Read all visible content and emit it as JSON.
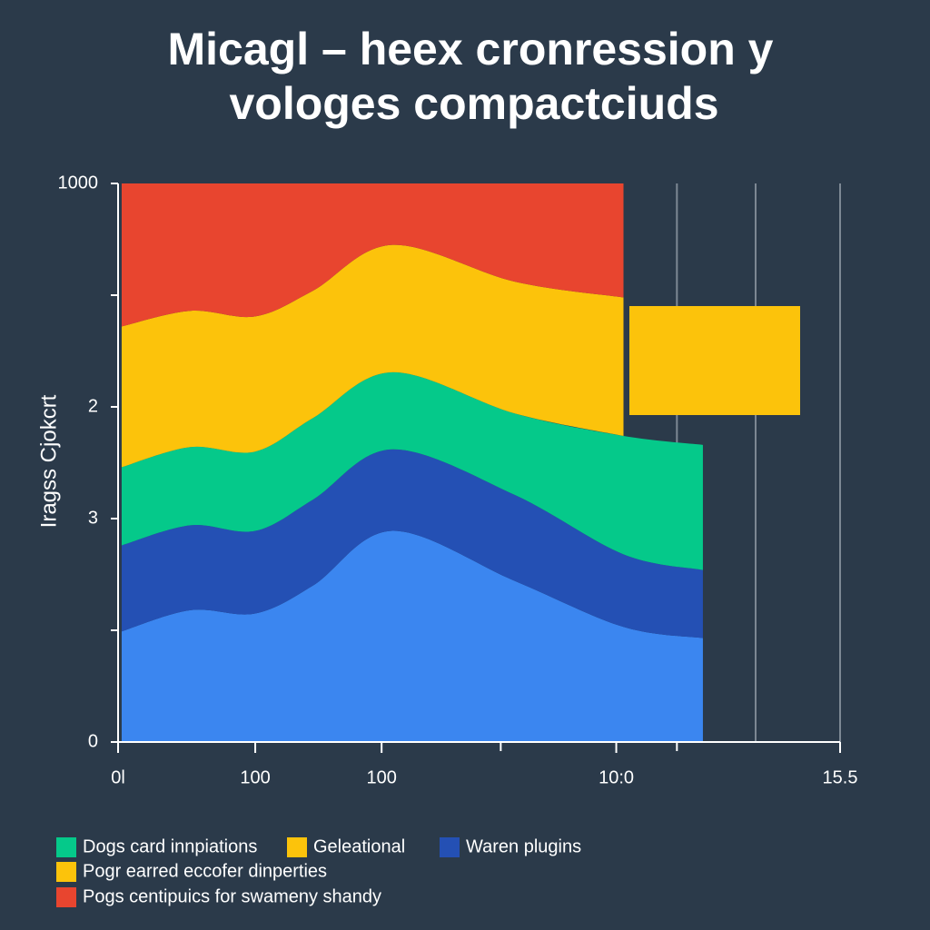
{
  "chart_data": {
    "type": "stacked-area",
    "title": [
      "Micagl – heex cronression y",
      "vologes compactciuds"
    ],
    "ylabel": "Iragss Cjokcrt",
    "x": [
      0.05,
      1,
      1.9,
      2.7,
      3.8,
      5.5,
      7.0,
      8.1
    ],
    "xlim": [
      0,
      10
    ],
    "xticks": [
      {
        "value": 0,
        "label": "0l"
      },
      {
        "value": 1.9,
        "label": "100"
      },
      {
        "value": 3.65,
        "label": "100"
      },
      {
        "value": 6.9,
        "label": "10:0"
      },
      {
        "value": 10,
        "label": "15.5"
      }
    ],
    "xminorticks": [
      5.3,
      7.74
    ],
    "xgridlines": [
      7.74,
      8.83,
      10
    ],
    "ylim": [
      0,
      5
    ],
    "yticks": [
      0,
      {
        "value": 2,
        "label": "3"
      },
      {
        "value": 3,
        "label": "2"
      },
      {
        "value": 5,
        "label": "1000"
      }
    ],
    "yminorticks": [
      1,
      4
    ],
    "series": [
      {
        "color": "#3b86f0",
        "values": [
          0.99,
          1.18,
          1.15,
          1.4,
          1.89,
          1.44,
          1.03,
          0.93
        ]
      },
      {
        "color": "#2450b4",
        "values": [
          0.77,
          0.76,
          0.74,
          0.77,
          0.73,
          0.77,
          0.65,
          0.61
        ]
      },
      {
        "color": "#05c98a",
        "values": [
          0.7,
          0.7,
          0.71,
          0.73,
          0.69,
          0.73,
          1.06,
          1.12
        ]
      },
      {
        "color": "#fcc30b",
        "values": [
          1.26,
          1.22,
          1.21,
          1.14,
          1.14,
          1.18,
          1.24,
          null
        ]
      },
      {
        "color": "#e8452f",
        "values": [
          1.28,
          1.14,
          1.19,
          0.96,
          0.55,
          0.88,
          1.02,
          null
        ]
      }
    ],
    "legend": [
      {
        "label": "Dogs card innpiations",
        "color": "#05c98a"
      },
      {
        "label": "Geleational",
        "color": "#fcc30b"
      },
      {
        "label": "Waren plugins",
        "color": "#2450b4"
      },
      {
        "label": "Pogr earred eccofer dinperties",
        "color": "#fcc30b"
      },
      {
        "label": "Pogs centipuics for swameny shandy",
        "color": "#e8452f"
      }
    ]
  }
}
